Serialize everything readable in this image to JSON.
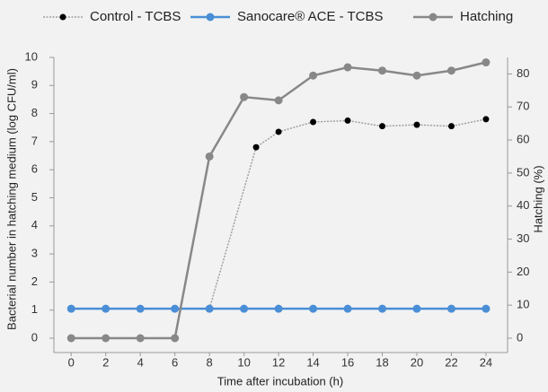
{
  "chart_data": {
    "type": "line",
    "xlabel": "Time after incubation (h)",
    "ylabel": "Bacterial number in hatching medium (log CFU/ml)",
    "y2label": "Hatching (%)",
    "xlim": [
      -1,
      25.25
    ],
    "xticks": [
      0,
      2,
      4,
      6,
      8,
      10,
      12,
      14,
      16,
      18,
      20,
      22,
      24
    ],
    "ylim": [
      0,
      10
    ],
    "yticks": [
      0,
      1,
      2,
      3,
      4,
      5,
      6,
      7,
      8,
      9,
      10
    ],
    "y2lim": [
      0,
      85
    ],
    "y2ticks": [
      0,
      10,
      20,
      30,
      40,
      50,
      60,
      70,
      80
    ],
    "series": [
      {
        "name": "Control - TCBS",
        "color": "#000000",
        "line_color": "#a0a0a0",
        "dash": true,
        "x": [
          0,
          2,
          4,
          6,
          8,
          10.7,
          12,
          14,
          16,
          18,
          20,
          22,
          24
        ],
        "values": [
          1.05,
          1.05,
          1.05,
          1.05,
          1.05,
          6.8,
          7.35,
          7.7,
          7.75,
          7.55,
          7.6,
          7.55,
          7.8
        ]
      },
      {
        "name": "Sanocare® ACE - TCBS",
        "color": "#4a8fd6",
        "line_color": "#4a8fd6",
        "x": [
          0,
          2,
          4,
          6,
          8,
          10,
          12,
          14,
          16,
          18,
          20,
          22,
          24
        ],
        "values": [
          1.05,
          1.05,
          1.05,
          1.05,
          1.05,
          1.05,
          1.05,
          1.05,
          1.05,
          1.05,
          1.05,
          1.05,
          1.05
        ]
      },
      {
        "name": "Hatching",
        "color": "#888888",
        "line_color": "#888888",
        "axis": "y2",
        "x": [
          0,
          2,
          4,
          6,
          8,
          10,
          12,
          14,
          16,
          18,
          20,
          22,
          24
        ],
        "values": [
          0,
          0,
          0,
          0,
          55,
          73,
          72,
          79.5,
          82,
          81,
          79.5,
          81,
          83.5
        ]
      }
    ]
  }
}
